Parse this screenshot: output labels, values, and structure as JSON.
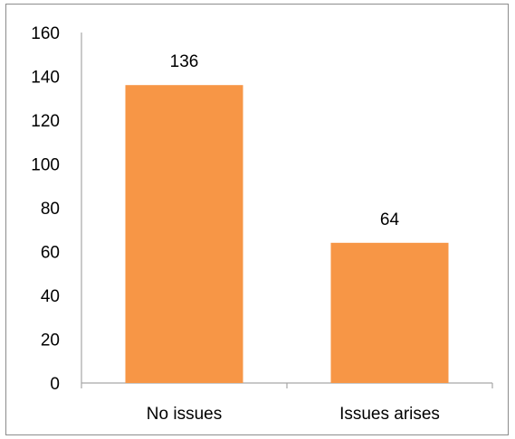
{
  "chart_data": {
    "type": "bar",
    "title": "",
    "xlabel": "",
    "ylabel": "",
    "categories": [
      "No issues",
      "Issues arises"
    ],
    "values": [
      136,
      64
    ],
    "data_labels": [
      "136",
      "64"
    ],
    "ylim": [
      0,
      160
    ],
    "y_ticks": [
      0,
      20,
      40,
      60,
      80,
      100,
      120,
      140,
      160
    ],
    "grid": false,
    "legend": "none",
    "bar_color": "#F79646"
  }
}
